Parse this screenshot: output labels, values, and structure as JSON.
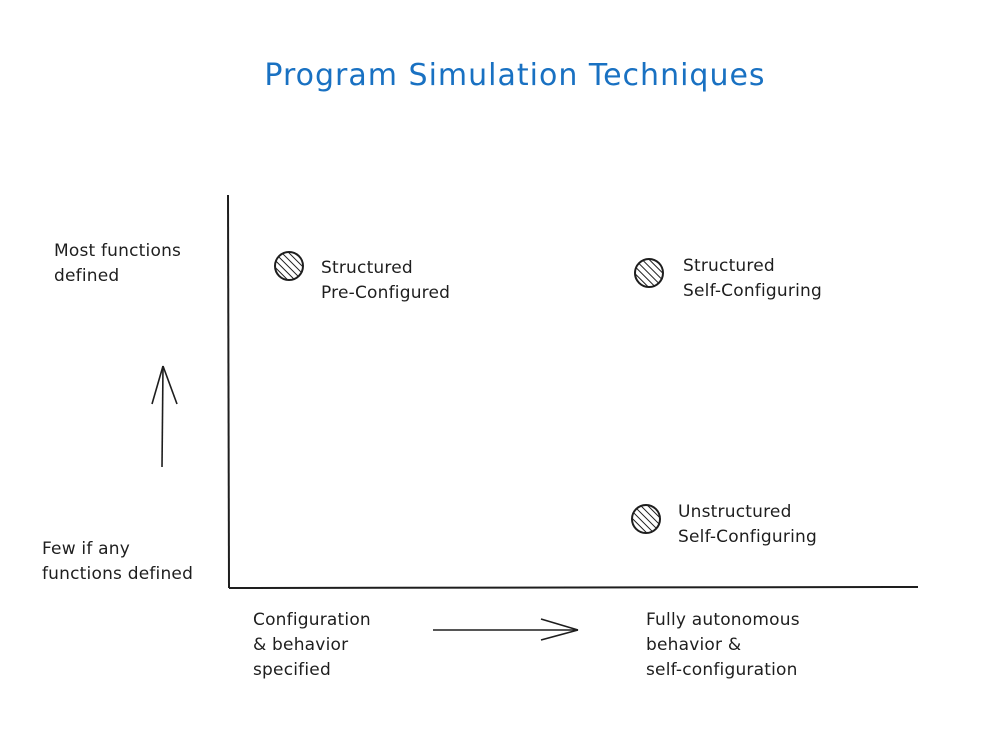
{
  "title": "Program Simulation Techniques",
  "colors": {
    "title": "#1971c2",
    "purple": "#7950f2",
    "orange": "#fab005",
    "blue": "#4dabf7"
  },
  "y_axis": {
    "top_label": "Most functions\ndefined",
    "bottom_label": "Few if any\nfunctions defined"
  },
  "x_axis": {
    "left_label": "Configuration\n& behavior\nspecified",
    "right_label": "Fully autonomous\nbehavior &\nself-configuration"
  },
  "points": [
    {
      "label": "Structured\nPre-Configured",
      "color": "#7950f2"
    },
    {
      "label": "Structured\nSelf-Configuring",
      "color": "#fab005"
    },
    {
      "label": "Unstructured\nSelf-Configuring",
      "color": "#4dabf7"
    }
  ]
}
